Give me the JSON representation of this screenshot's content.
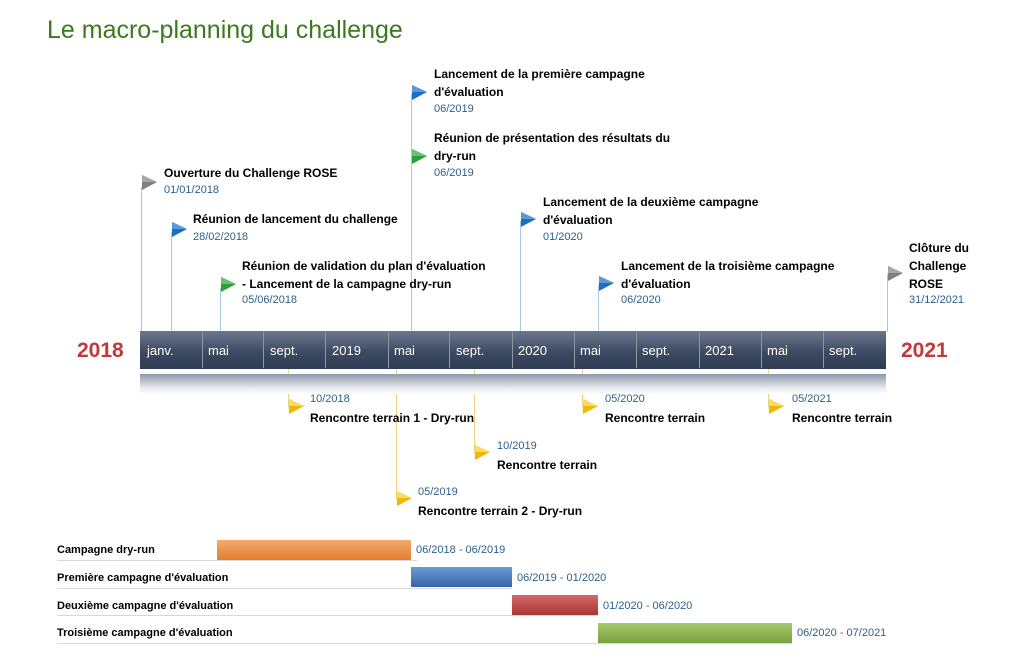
{
  "title": "Le macro-planning du challenge",
  "timeline": {
    "start_year": "2018",
    "end_year": "2021",
    "labels": [
      "janv.",
      "mai",
      "sept.",
      "2019",
      "mai",
      "sept.",
      "2020",
      "mai",
      "sept.",
      "2021",
      "mai",
      "sept."
    ]
  },
  "milestones_above": [
    {
      "title": "Ouverture du Challenge ROSE",
      "date": "01/01/2018",
      "color": "#7f7f7f"
    },
    {
      "title": "Réunion de lancement du challenge",
      "date": "28/02/2018",
      "color": "#1f6fc0"
    },
    {
      "title": "Réunion de validation  du plan d'évaluation",
      "title2": "- Lancement de la campagne dry-run",
      "date": "05/06/2018",
      "color": "#2e9e3e"
    },
    {
      "title": "Lancement de la première campagne",
      "title2": "d'évaluation",
      "date": "06/2019",
      "color": "#1f6fc0"
    },
    {
      "title": "Réunion de présentation  des résultats  du",
      "title2": "dry-run",
      "date": "06/2019",
      "color": "#2e9e3e"
    },
    {
      "title": "Lancement de la deuxième campagne",
      "title2": "d'évaluation",
      "date": "01/2020",
      "color": "#1f6fc0"
    },
    {
      "title": "Lancement de la troisième  campagne",
      "title2": "d'évaluation",
      "date": "06/2020",
      "color": "#1f6fc0"
    },
    {
      "title": "Clôture du",
      "title2": "Challenge",
      "title3": "ROSE",
      "date": "31/12/2021",
      "color": "#7f7f7f"
    }
  ],
  "milestones_below": [
    {
      "date": "10/2018",
      "title": "Rencontre terrain  1 - Dry-run",
      "color": "#f0b800"
    },
    {
      "date": "10/2019",
      "title": "Rencontre terrain",
      "color": "#f0b800"
    },
    {
      "date": "05/2019",
      "title": "Rencontre terrain  2 - Dry-run",
      "color": "#f0b800"
    },
    {
      "date": "05/2020",
      "title": "Rencontre terrain",
      "color": "#f0b800"
    },
    {
      "date": "05/2021",
      "title": "Rencontre terrain",
      "color": "#f0b800"
    }
  ],
  "gantt": [
    {
      "label": "Campagne  dry-run",
      "range": "06/2018 - 06/2019",
      "color": "#ed8a3a"
    },
    {
      "label": "Première campagne d'évaluation",
      "range": "06/2019 - 01/2020",
      "color": "#3d74b8"
    },
    {
      "label": "Deuxième campagne d'évaluation",
      "range": "01/2020 - 06/2020",
      "color": "#bd4040"
    },
    {
      "label": "Troisième campagne d'évaluation",
      "range": "06/2020 - 07/2021",
      "color": "#8db04e"
    }
  ]
}
